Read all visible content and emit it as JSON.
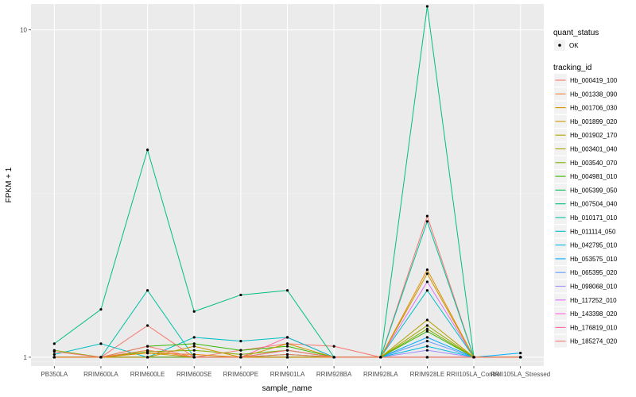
{
  "chart_data": {
    "type": "line",
    "title": "",
    "xlabel": "sample_name",
    "ylabel": "FPKM + 1",
    "y_scale": "log10",
    "ylim": [
      0.94,
      12.0
    ],
    "y_ticks": [
      {
        "value": 1,
        "label": "1"
      },
      {
        "value": 10,
        "label": "10"
      }
    ],
    "grid": true,
    "legend_position": "right",
    "categories": [
      "PB350LA",
      "RRIM600LA",
      "RRIM600LE",
      "RRIM600SE",
      "RRIM600PE",
      "RRIM901LA",
      "RRIM928BA",
      "RRIM928LA",
      "RRIM928LE",
      "RRII105LA_Control",
      "RRII105LA_Stressed"
    ],
    "quant_status_legend": {
      "title": "quant_status",
      "entries": [
        {
          "label": "OK"
        }
      ]
    },
    "series_legend_title": "tracking_id",
    "series": [
      {
        "name": "Hb_000419_100",
        "color": "#F8766D",
        "values": [
          1.04,
          1.0,
          1.08,
          1.0,
          1.0,
          1.05,
          1.0,
          1.0,
          1.0,
          1.0,
          1.0
        ]
      },
      {
        "name": "Hb_001338_090",
        "color": "#EE8042",
        "values": [
          1.0,
          1.0,
          1.05,
          1.0,
          1.0,
          1.02,
          1.0,
          1.0,
          1.0,
          1.0,
          1.0
        ]
      },
      {
        "name": "Hb_001706_030",
        "color": "#DE8C00",
        "values": [
          1.0,
          1.0,
          1.03,
          1.02,
          1.0,
          1.0,
          1.0,
          1.0,
          1.85,
          1.0,
          1.0
        ]
      },
      {
        "name": "Hb_001899_020",
        "color": "#CC9600",
        "values": [
          1.0,
          1.0,
          1.0,
          1.08,
          1.0,
          1.1,
          1.0,
          1.0,
          1.8,
          1.0,
          1.0
        ]
      },
      {
        "name": "Hb_001902_170",
        "color": "#B79F00",
        "values": [
          1.0,
          1.0,
          1.03,
          1.0,
          1.0,
          1.0,
          1.0,
          1.0,
          1.3,
          1.0,
          1.0
        ]
      },
      {
        "name": "Hb_003401_040",
        "color": "#9EA700",
        "values": [
          1.0,
          1.0,
          1.0,
          1.0,
          1.0,
          1.0,
          1.0,
          1.0,
          1.25,
          1.0,
          1.0
        ]
      },
      {
        "name": "Hb_003540_070",
        "color": "#7CAE00",
        "values": [
          1.05,
          1.0,
          1.04,
          1.05,
          1.02,
          1.05,
          1.0,
          1.0,
          1.22,
          1.0,
          1.0
        ]
      },
      {
        "name": "Hb_004981_010",
        "color": "#39B600",
        "values": [
          1.0,
          1.0,
          1.08,
          1.1,
          1.05,
          1.08,
          1.0,
          1.0,
          1.2,
          1.0,
          1.0
        ]
      },
      {
        "name": "Hb_005399_050",
        "color": "#00BB4E",
        "values": [
          1.0,
          1.0,
          1.0,
          1.0,
          1.0,
          1.0,
          1.0,
          1.0,
          1.0,
          1.0,
          1.0
        ]
      },
      {
        "name": "Hb_007504_040",
        "color": "#00BF7D",
        "values": [
          1.1,
          1.4,
          4.3,
          1.38,
          1.55,
          1.6,
          1.0,
          1.0,
          11.8,
          1.0,
          1.0
        ]
      },
      {
        "name": "Hb_010171_010",
        "color": "#00C1A3",
        "values": [
          1.0,
          1.0,
          1.6,
          1.0,
          1.0,
          1.0,
          1.0,
          1.0,
          2.6,
          1.0,
          1.0
        ]
      },
      {
        "name": "Hb_011114_050",
        "color": "#00BFC4",
        "values": [
          1.02,
          1.1,
          1.0,
          1.15,
          1.12,
          1.15,
          1.0,
          1.0,
          1.6,
          1.0,
          1.0
        ]
      },
      {
        "name": "Hb_042795_010",
        "color": "#00B8E5",
        "values": [
          1.0,
          1.0,
          1.0,
          1.0,
          1.0,
          1.0,
          1.0,
          1.0,
          1.08,
          1.0,
          1.0
        ]
      },
      {
        "name": "Hb_053575_010",
        "color": "#00ABFD",
        "values": [
          1.0,
          1.0,
          1.0,
          1.0,
          1.0,
          1.02,
          1.0,
          1.0,
          1.15,
          1.0,
          1.03
        ]
      },
      {
        "name": "Hb_065395_020",
        "color": "#619CFF",
        "values": [
          1.0,
          1.0,
          1.0,
          1.0,
          1.0,
          1.05,
          1.0,
          1.0,
          1.12,
          1.0,
          1.0
        ]
      },
      {
        "name": "Hb_098068_010",
        "color": "#A58AFF",
        "values": [
          1.0,
          1.0,
          1.0,
          1.0,
          1.0,
          1.0,
          1.0,
          1.0,
          1.05,
          1.0,
          1.0
        ]
      },
      {
        "name": "Hb_117252_010",
        "color": "#DF70F8",
        "values": [
          1.0,
          1.0,
          1.0,
          1.0,
          1.0,
          1.0,
          1.0,
          1.0,
          1.7,
          1.0,
          1.0
        ]
      },
      {
        "name": "Hb_143398_020",
        "color": "#FB61D7",
        "values": [
          1.0,
          1.0,
          1.0,
          1.0,
          1.0,
          1.0,
          1.0,
          1.0,
          1.0,
          1.0,
          1.0
        ]
      },
      {
        "name": "Hb_176819_010",
        "color": "#FF66A8",
        "values": [
          1.0,
          1.0,
          1.0,
          1.0,
          1.0,
          1.15,
          1.0,
          1.0,
          1.0,
          1.0,
          1.0
        ]
      },
      {
        "name": "Hb_185274_020",
        "color": "#F8766D",
        "values": [
          1.0,
          1.0,
          1.25,
          1.0,
          1.05,
          1.1,
          1.08,
          1.0,
          2.7,
          1.0,
          1.0
        ]
      }
    ]
  }
}
